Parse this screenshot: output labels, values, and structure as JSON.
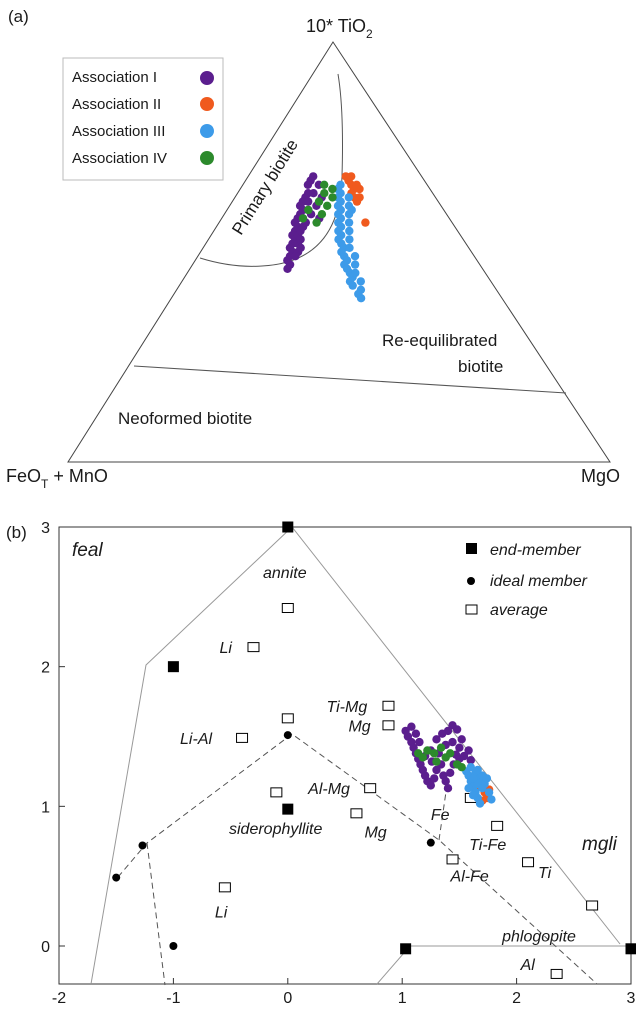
{
  "figure_a": {
    "panel_label": "(a)",
    "apex_top": "10* TiO",
    "apex_top_sub": "2",
    "apex_left_main": "FeO",
    "apex_left_sub": "T",
    "apex_left_tail": " + MnO",
    "apex_right": "MgO",
    "field_primary": "Primary biotite",
    "field_reequil_1": "Re-equilibrated",
    "field_reequil_2": "biotite",
    "field_neoformed": "Neoformed biotite",
    "legend": [
      {
        "label": "Association I",
        "color": "#5b1e8e"
      },
      {
        "label": "Association II",
        "color": "#f05a1e"
      },
      {
        "label": "Association III",
        "color": "#3d9be9"
      },
      {
        "label": "Association IV",
        "color": "#2c8a2c"
      }
    ]
  },
  "figure_b": {
    "panel_label": "(b)",
    "corner_feal": "feal",
    "corner_mgli": "mgli",
    "legend": [
      {
        "symbol": "square-filled",
        "label": "end-member"
      },
      {
        "symbol": "circle-filled",
        "label": "ideal member"
      },
      {
        "symbol": "square-open",
        "label": "average"
      }
    ]
  },
  "chart_data": [
    {
      "type": "scatter",
      "title": "",
      "plot_kind": "ternary",
      "apices": [
        "10* TiO2",
        "FeOT + MnO",
        "MgO"
      ],
      "fields": [
        "Primary biotite",
        "Re-equilibrated biotite",
        "Neoformed biotite"
      ],
      "series": [
        {
          "name": "Association I",
          "color": "#5b1e8e",
          "points_tio2_feo_mgo": [
            [
              0.68,
              0.2,
              0.12
            ],
            [
              0.67,
              0.21,
              0.12
            ],
            [
              0.66,
              0.22,
              0.12
            ],
            [
              0.64,
              0.23,
              0.13
            ],
            [
              0.63,
              0.24,
              0.13
            ],
            [
              0.62,
              0.25,
              0.13
            ],
            [
              0.61,
              0.26,
              0.13
            ],
            [
              0.6,
              0.26,
              0.14
            ],
            [
              0.59,
              0.27,
              0.14
            ],
            [
              0.58,
              0.28,
              0.14
            ],
            [
              0.57,
              0.29,
              0.14
            ],
            [
              0.56,
              0.29,
              0.15
            ],
            [
              0.55,
              0.3,
              0.15
            ],
            [
              0.54,
              0.31,
              0.15
            ],
            [
              0.53,
              0.31,
              0.16
            ],
            [
              0.52,
              0.32,
              0.16
            ],
            [
              0.51,
              0.33,
              0.16
            ],
            [
              0.5,
              0.33,
              0.17
            ],
            [
              0.49,
              0.34,
              0.17
            ],
            [
              0.48,
              0.35,
              0.17
            ],
            [
              0.62,
              0.24,
              0.14
            ],
            [
              0.6,
              0.25,
              0.15
            ],
            [
              0.58,
              0.27,
              0.15
            ],
            [
              0.56,
              0.28,
              0.16
            ],
            [
              0.54,
              0.3,
              0.16
            ],
            [
              0.52,
              0.31,
              0.17
            ],
            [
              0.5,
              0.32,
              0.18
            ],
            [
              0.64,
              0.22,
              0.14
            ],
            [
              0.66,
              0.2,
              0.14
            ],
            [
              0.59,
              0.25,
              0.16
            ],
            [
              0.57,
              0.27,
              0.16
            ],
            [
              0.55,
              0.29,
              0.16
            ],
            [
              0.53,
              0.3,
              0.17
            ],
            [
              0.61,
              0.23,
              0.16
            ],
            [
              0.63,
              0.21,
              0.16
            ],
            [
              0.47,
              0.35,
              0.18
            ],
            [
              0.46,
              0.36,
              0.18
            ],
            [
              0.51,
              0.31,
              0.18
            ],
            [
              0.49,
              0.33,
              0.18
            ],
            [
              0.58,
              0.24,
              0.18
            ]
          ]
        },
        {
          "name": "Association II",
          "color": "#f05a1e",
          "points_tio2_feo_mgo": [
            [
              0.68,
              0.14,
              0.18
            ],
            [
              0.67,
              0.14,
              0.19
            ],
            [
              0.66,
              0.14,
              0.2
            ],
            [
              0.65,
              0.14,
              0.21
            ],
            [
              0.64,
              0.15,
              0.21
            ],
            [
              0.63,
              0.15,
              0.22
            ],
            [
              0.62,
              0.15,
              0.23
            ],
            [
              0.66,
              0.13,
              0.21
            ],
            [
              0.65,
              0.13,
              0.22
            ],
            [
              0.57,
              0.16,
              0.27
            ],
            [
              0.68,
              0.13,
              0.19
            ],
            [
              0.63,
              0.14,
              0.23
            ]
          ]
        },
        {
          "name": "Association III",
          "color": "#3d9be9",
          "points_tio2_feo_mgo": [
            [
              0.66,
              0.16,
              0.18
            ],
            [
              0.65,
              0.17,
              0.18
            ],
            [
              0.64,
              0.17,
              0.19
            ],
            [
              0.63,
              0.18,
              0.19
            ],
            [
              0.62,
              0.18,
              0.2
            ],
            [
              0.61,
              0.19,
              0.2
            ],
            [
              0.6,
              0.19,
              0.21
            ],
            [
              0.59,
              0.2,
              0.21
            ],
            [
              0.58,
              0.2,
              0.22
            ],
            [
              0.57,
              0.21,
              0.22
            ],
            [
              0.56,
              0.21,
              0.23
            ],
            [
              0.55,
              0.22,
              0.23
            ],
            [
              0.54,
              0.22,
              0.24
            ],
            [
              0.53,
              0.23,
              0.24
            ],
            [
              0.52,
              0.23,
              0.25
            ],
            [
              0.51,
              0.23,
              0.26
            ],
            [
              0.5,
              0.24,
              0.26
            ],
            [
              0.49,
              0.24,
              0.27
            ],
            [
              0.48,
              0.24,
              0.28
            ],
            [
              0.47,
              0.25,
              0.28
            ],
            [
              0.46,
              0.25,
              0.29
            ],
            [
              0.45,
              0.25,
              0.3
            ],
            [
              0.44,
              0.25,
              0.31
            ],
            [
              0.43,
              0.26,
              0.31
            ],
            [
              0.42,
              0.26,
              0.32
            ],
            [
              0.63,
              0.16,
              0.21
            ],
            [
              0.61,
              0.17,
              0.22
            ],
            [
              0.59,
              0.18,
              0.23
            ],
            [
              0.57,
              0.19,
              0.24
            ],
            [
              0.55,
              0.2,
              0.25
            ],
            [
              0.53,
              0.21,
              0.26
            ],
            [
              0.51,
              0.22,
              0.27
            ],
            [
              0.49,
              0.22,
              0.29
            ],
            [
              0.47,
              0.23,
              0.3
            ],
            [
              0.45,
              0.24,
              0.31
            ],
            [
              0.43,
              0.24,
              0.33
            ],
            [
              0.41,
              0.25,
              0.34
            ],
            [
              0.4,
              0.26,
              0.34
            ],
            [
              0.39,
              0.26,
              0.35
            ],
            [
              0.6,
              0.17,
              0.23
            ]
          ]
        },
        {
          "name": "Association IV",
          "color": "#2c8a2c",
          "points_tio2_feo_mgo": [
            [
              0.66,
              0.19,
              0.15
            ],
            [
              0.64,
              0.2,
              0.16
            ],
            [
              0.62,
              0.22,
              0.16
            ],
            [
              0.6,
              0.25,
              0.15
            ],
            [
              0.58,
              0.27,
              0.15
            ],
            [
              0.63,
              0.19,
              0.18
            ],
            [
              0.61,
              0.21,
              0.18
            ],
            [
              0.59,
              0.23,
              0.18
            ],
            [
              0.65,
              0.18,
              0.17
            ],
            [
              0.57,
              0.25,
              0.18
            ]
          ]
        }
      ]
    },
    {
      "type": "scatter",
      "title": "",
      "xlabel": "",
      "ylabel": "",
      "xlim": [
        -2,
        3
      ],
      "ylim": [
        -0.35,
        3
      ],
      "xticks": [
        "-2",
        "-1",
        "0",
        "1",
        "2",
        "3"
      ],
      "yticks": [
        "0",
        "1",
        "2",
        "3"
      ],
      "end_members": [
        {
          "x": 0,
          "y": 3
        },
        {
          "x": -1,
          "y": 2
        },
        {
          "x": 0,
          "y": 0.98
        },
        {
          "x": 1.03,
          "y": -0.02
        },
        {
          "x": 3,
          "y": -0.02
        }
      ],
      "ideal_members": [
        {
          "x": 0,
          "y": 1.51
        },
        {
          "x": -1.5,
          "y": 0.49
        },
        {
          "x": -1.27,
          "y": 0.72
        },
        {
          "x": -1,
          "y": 0.0
        },
        {
          "x": 1.25,
          "y": 0.74
        }
      ],
      "averages": [
        {
          "x": 0.0,
          "y": 2.42,
          "label": ""
        },
        {
          "x": -0.3,
          "y": 2.14,
          "label": "Li"
        },
        {
          "x": 0.88,
          "y": 1.72,
          "label": "Ti-Mg"
        },
        {
          "x": 0.88,
          "y": 1.58,
          "label": "Mg"
        },
        {
          "x": 0.0,
          "y": 1.63,
          "label": ""
        },
        {
          "x": -0.4,
          "y": 1.49,
          "label": "Li-Al"
        },
        {
          "x": 0.72,
          "y": 1.13,
          "label": "Al-Mg"
        },
        {
          "x": -0.1,
          "y": 1.1,
          "label": ""
        },
        {
          "x": 0.6,
          "y": 0.95,
          "label": "Mg"
        },
        {
          "x": 1.6,
          "y": 1.06,
          "label": "Fe"
        },
        {
          "x": 1.83,
          "y": 0.86,
          "label": "Ti-Fe"
        },
        {
          "x": 1.44,
          "y": 0.62,
          "label": "Al-Fe"
        },
        {
          "x": 2.1,
          "y": 0.6,
          "label": "Ti"
        },
        {
          "x": -0.55,
          "y": 0.42,
          "label": "Li"
        },
        {
          "x": 2.66,
          "y": 0.29,
          "label": "phlogopite"
        },
        {
          "x": 2.35,
          "y": -0.2,
          "label": "Al"
        }
      ],
      "named_labels": [
        "annite",
        "siderophyllite"
      ],
      "series": [
        {
          "name": "Association I",
          "color": "#5b1e8e",
          "points": [
            [
              1.03,
              1.54
            ],
            [
              1.05,
              1.5
            ],
            [
              1.08,
              1.46
            ],
            [
              1.1,
              1.42
            ],
            [
              1.12,
              1.38
            ],
            [
              1.14,
              1.34
            ],
            [
              1.16,
              1.3
            ],
            [
              1.18,
              1.26
            ],
            [
              1.2,
              1.22
            ],
            [
              1.22,
              1.18
            ],
            [
              1.25,
              1.15
            ],
            [
              1.28,
              1.2
            ],
            [
              1.3,
              1.26
            ],
            [
              1.34,
              1.3
            ],
            [
              1.36,
              1.22
            ],
            [
              1.38,
              1.18
            ],
            [
              1.4,
              1.13
            ],
            [
              1.42,
              1.24
            ],
            [
              1.45,
              1.3
            ],
            [
              1.47,
              1.37
            ],
            [
              1.5,
              1.42
            ],
            [
              1.52,
              1.48
            ],
            [
              1.48,
              1.55
            ],
            [
              1.44,
              1.58
            ],
            [
              1.4,
              1.54
            ],
            [
              1.35,
              1.52
            ],
            [
              1.3,
              1.48
            ],
            [
              1.25,
              1.4
            ],
            [
              1.2,
              1.36
            ],
            [
              1.15,
              1.46
            ],
            [
              1.12,
              1.52
            ],
            [
              1.08,
              1.57
            ],
            [
              1.26,
              1.32
            ],
            [
              1.32,
              1.38
            ],
            [
              1.38,
              1.44
            ],
            [
              1.44,
              1.46
            ],
            [
              1.5,
              1.34
            ],
            [
              1.54,
              1.36
            ],
            [
              1.58,
              1.4
            ],
            [
              1.6,
              1.33
            ]
          ]
        },
        {
          "name": "Association II",
          "color": "#f05a1e",
          "points": [
            [
              1.68,
              1.14
            ],
            [
              1.7,
              1.18
            ],
            [
              1.72,
              1.1
            ],
            [
              1.74,
              1.06
            ],
            [
              1.72,
              1.2
            ],
            [
              1.66,
              1.2
            ],
            [
              1.76,
              1.12
            ],
            [
              1.7,
              1.04
            ]
          ]
        },
        {
          "name": "Association III",
          "color": "#3d9be9",
          "points": [
            [
              1.56,
              1.25
            ],
            [
              1.58,
              1.22
            ],
            [
              1.6,
              1.18
            ],
            [
              1.62,
              1.14
            ],
            [
              1.64,
              1.1
            ],
            [
              1.66,
              1.06
            ],
            [
              1.68,
              1.02
            ],
            [
              1.6,
              1.28
            ],
            [
              1.64,
              1.24
            ],
            [
              1.68,
              1.2
            ],
            [
              1.72,
              1.16
            ],
            [
              1.76,
              1.1
            ],
            [
              1.78,
              1.05
            ],
            [
              1.62,
              1.08
            ],
            [
              1.66,
              1.16
            ],
            [
              1.7,
              1.22
            ],
            [
              1.74,
              1.2
            ],
            [
              1.58,
              1.13
            ],
            [
              1.62,
              1.2
            ],
            [
              1.66,
              1.26
            ],
            [
              1.7,
              1.13
            ]
          ]
        },
        {
          "name": "Association IV",
          "color": "#2c8a2c",
          "points": [
            [
              1.14,
              1.38
            ],
            [
              1.18,
              1.35
            ],
            [
              1.22,
              1.4
            ],
            [
              1.28,
              1.38
            ],
            [
              1.34,
              1.42
            ],
            [
              1.42,
              1.38
            ],
            [
              1.48,
              1.3
            ],
            [
              1.52,
              1.28
            ],
            [
              1.3,
              1.32
            ],
            [
              1.38,
              1.35
            ]
          ]
        }
      ]
    }
  ]
}
